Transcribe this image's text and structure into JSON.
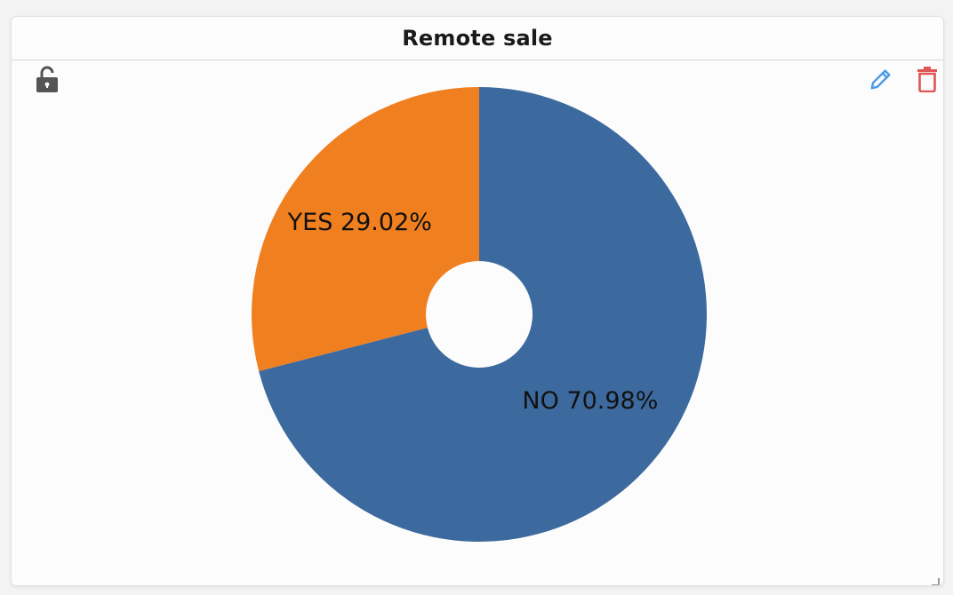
{
  "card": {
    "title": "Remote sale"
  },
  "icons": {
    "lock": "unlock-icon",
    "edit": "pencil-icon",
    "delete": "trash-icon",
    "resize": "resize-handle-icon"
  },
  "colors": {
    "no": "#3d6a9e",
    "yes": "#f07f1f",
    "edit_icon": "#4a9be6",
    "delete_icon": "#e05555",
    "lock_icon": "#555555"
  },
  "chart_data": {
    "type": "pie",
    "donut": true,
    "title": "Remote sale",
    "slices": [
      {
        "label": "NO",
        "value": 70.98,
        "display": "NO 70.98%",
        "color": "#3d6a9e"
      },
      {
        "label": "YES",
        "value": 29.02,
        "display": "YES 29.02%",
        "color": "#f07f1f"
      }
    ]
  }
}
